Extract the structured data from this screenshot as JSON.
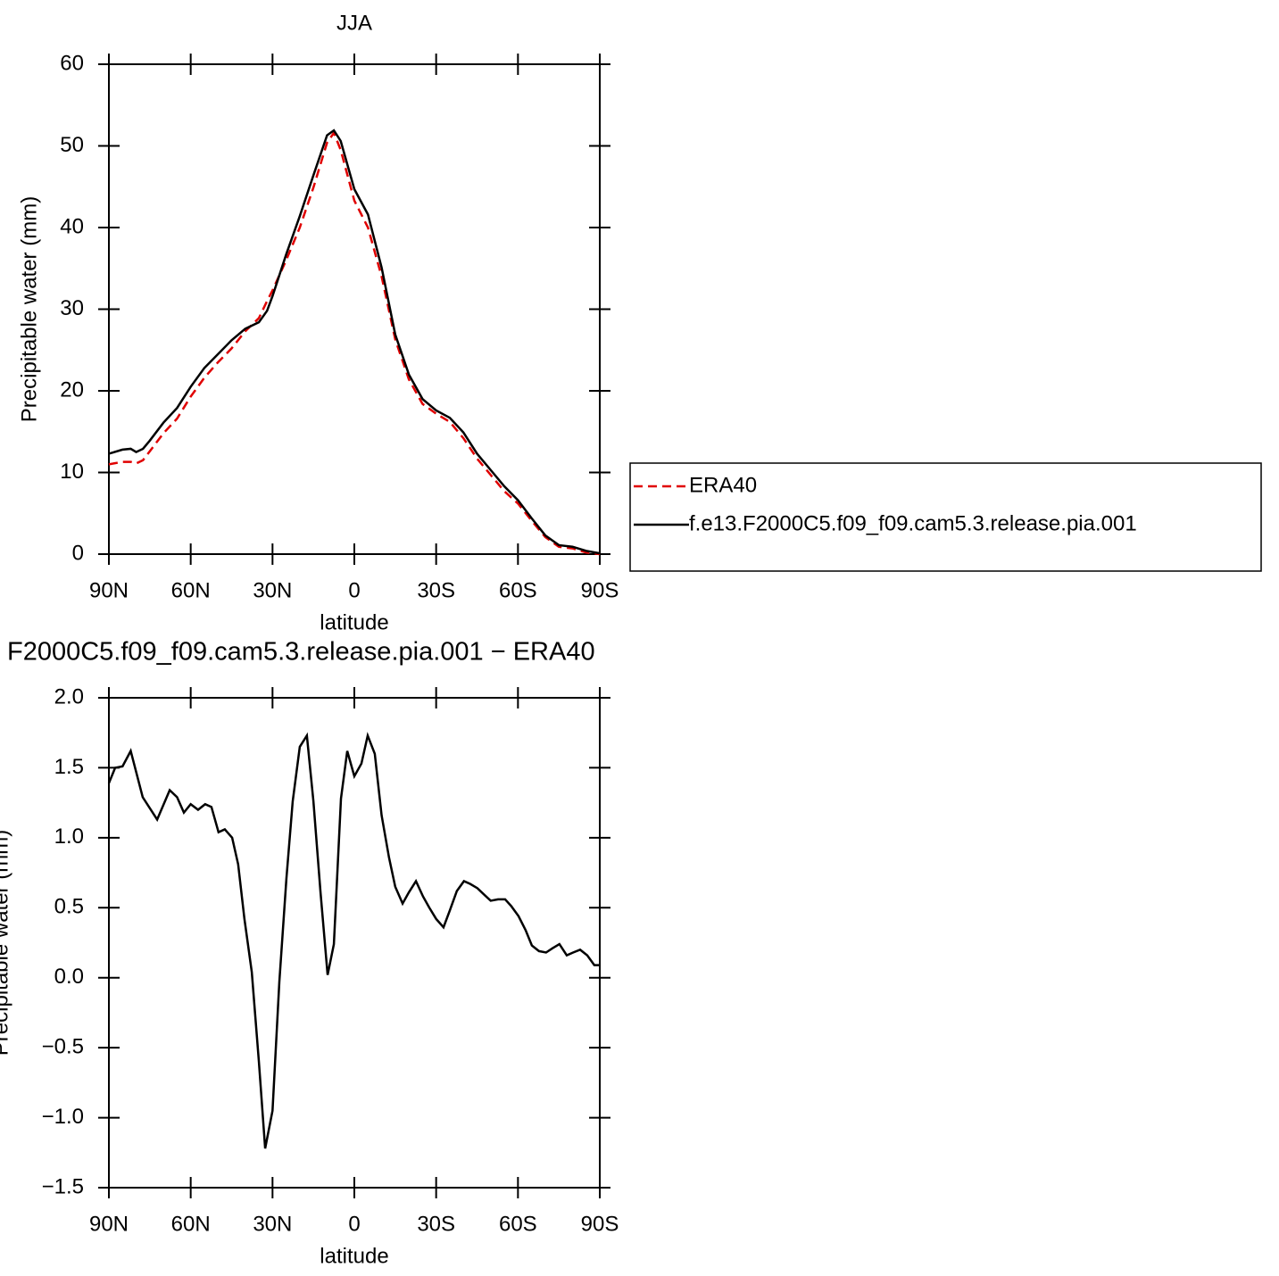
{
  "chart_data": [
    {
      "type": "line",
      "title": "JJA",
      "ylabel": "Precipitable water (mm)",
      "xlabel": "latitude",
      "legend": "right",
      "xlim": [
        90,
        -90
      ],
      "xticks": [
        {
          "value": 90,
          "label": "90N"
        },
        {
          "value": 60,
          "label": "60N"
        },
        {
          "value": 30,
          "label": "30N"
        },
        0,
        {
          "value": -30,
          "label": "30S"
        },
        {
          "value": -60,
          "label": "60S"
        },
        {
          "value": -90,
          "label": "90S"
        }
      ],
      "ylim": [
        0,
        60
      ],
      "yticks": [
        0,
        10,
        20,
        30,
        40,
        50,
        60
      ],
      "x": [
        90,
        85,
        82,
        80,
        77.5,
        75,
        70,
        65,
        60,
        55,
        50,
        45,
        40,
        35,
        32,
        30,
        25,
        20,
        15,
        10,
        7.5,
        5,
        0,
        -5,
        -10,
        -15,
        -20,
        -25,
        -30,
        -35,
        -40,
        -45,
        -50,
        -55,
        -60,
        -65,
        -70,
        -75,
        -80,
        -85,
        -90
      ],
      "series": [
        {
          "name": "ERA40",
          "color": "#e00000",
          "dash": true,
          "values": [
            11.0,
            11.3,
            11.3,
            11.1,
            11.5,
            12.6,
            14.8,
            16.6,
            19.3,
            21.6,
            23.5,
            25.2,
            27.3,
            28.9,
            31.0,
            32.3,
            36.0,
            40.0,
            44.9,
            50.4,
            51.6,
            49.5,
            43.3,
            40.0,
            34.0,
            26.3,
            21.4,
            18.4,
            17.2,
            16.2,
            14.2,
            11.7,
            9.7,
            7.7,
            6.2,
            4.1,
            2.1,
            0.9,
            0.7,
            0.2,
            0.0
          ]
        },
        {
          "name": "f.e13.F2000C5.f09_f09.cam5.3.release.pia.001",
          "color": "#000000",
          "dash": false,
          "values": [
            12.3,
            12.8,
            12.9,
            12.5,
            12.9,
            13.9,
            16.1,
            17.9,
            20.5,
            22.8,
            24.5,
            26.2,
            27.6,
            28.4,
            29.8,
            31.6,
            36.7,
            41.4,
            46.4,
            51.3,
            51.9,
            50.6,
            44.7,
            41.6,
            35.1,
            26.9,
            22.0,
            19.0,
            17.6,
            16.7,
            14.9,
            12.3,
            10.3,
            8.3,
            6.6,
            4.4,
            2.3,
            1.1,
            0.9,
            0.4,
            0.1
          ]
        }
      ]
    },
    {
      "type": "line",
      "title": "F2000C5.f09_f09.cam5.3.release.pia.001 − ERA40",
      "ylabel": "Precipitable water (mm)",
      "xlabel": "latitude",
      "xlim": [
        90,
        -90
      ],
      "xticks": [
        {
          "value": 90,
          "label": "90N"
        },
        {
          "value": 60,
          "label": "60N"
        },
        {
          "value": 30,
          "label": "30N"
        },
        0,
        {
          "value": -30,
          "label": "30S"
        },
        {
          "value": -60,
          "label": "60S"
        },
        {
          "value": -90,
          "label": "90S"
        }
      ],
      "ylim": [
        -1.5,
        2
      ],
      "yticks": [
        {
          "value": -1.5,
          "label": "−1.5"
        },
        {
          "value": -1,
          "label": "−1.0"
        },
        {
          "value": -0.5,
          "label": "−0.5"
        },
        {
          "value": 0,
          "label": "0.0"
        },
        0.5,
        {
          "value": 1,
          "label": "1.0"
        },
        1.5,
        {
          "value": 2,
          "label": "2.0"
        }
      ],
      "x": [
        90,
        87.7,
        85,
        82,
        77.6,
        72.3,
        67.7,
        65,
        62.5,
        60,
        57.3,
        54.7,
        52.4,
        49.8,
        47.5,
        44.8,
        42.6,
        40.3,
        37.6,
        35,
        32.7,
        30,
        27.5,
        24.9,
        22.6,
        20,
        17.4,
        15,
        12.4,
        9.8,
        7.5,
        4.9,
        2.6,
        0,
        -2.6,
        -4.9,
        -7.5,
        -10,
        -12.7,
        -15,
        -17.7,
        -20,
        -22.6,
        -25.2,
        -27.5,
        -30,
        -32.7,
        -35,
        -37.6,
        -40.2,
        -42.5,
        -45.1,
        -47.8,
        -50,
        -52.7,
        -55.3,
        -57.6,
        -60.2,
        -62.8,
        -65.1,
        -67.7,
        -70.3,
        -72.6,
        -75.2,
        -77.9,
        -80.2,
        -82.8,
        -85.4,
        -88,
        -90
      ],
      "series": [
        {
          "color": "#000000",
          "dash": false,
          "values": [
            1.39,
            1.5,
            1.51,
            1.62,
            1.29,
            1.13,
            1.34,
            1.29,
            1.18,
            1.24,
            1.2,
            1.24,
            1.22,
            1.04,
            1.06,
            1.0,
            0.81,
            0.42,
            0.04,
            -0.6,
            -1.22,
            -0.95,
            -0.03,
            0.71,
            1.26,
            1.65,
            1.73,
            1.26,
            0.61,
            0.02,
            0.24,
            1.28,
            1.62,
            1.44,
            1.53,
            1.73,
            1.6,
            1.16,
            0.86,
            0.65,
            0.53,
            0.61,
            0.69,
            0.58,
            0.5,
            0.42,
            0.36,
            0.48,
            0.62,
            0.69,
            0.67,
            0.64,
            0.59,
            0.55,
            0.56,
            0.56,
            0.51,
            0.44,
            0.34,
            0.23,
            0.19,
            0.18,
            0.21,
            0.24,
            0.16,
            0.18,
            0.2,
            0.16,
            0.09,
            0.09
          ]
        }
      ]
    }
  ]
}
